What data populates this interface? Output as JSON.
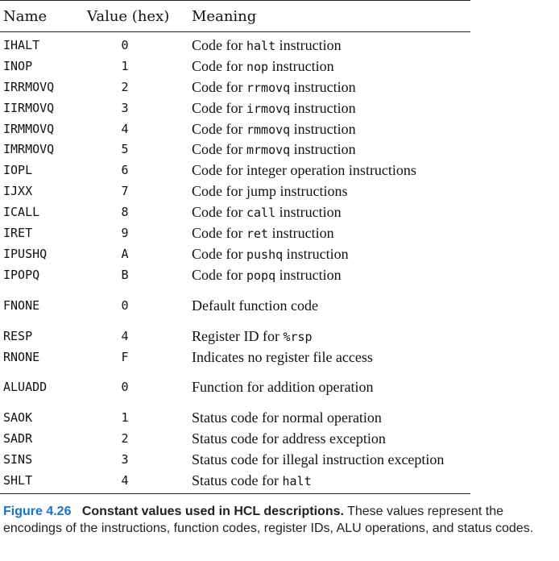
{
  "table": {
    "headers": {
      "name": "Name",
      "value": "Value (hex)",
      "meaning": "Meaning"
    },
    "rows": [
      {
        "name": "IHALT",
        "value": "0",
        "pre": "Code for ",
        "code": "halt",
        "post": " instruction"
      },
      {
        "name": "INOP",
        "value": "1",
        "pre": "Code for ",
        "code": "nop",
        "post": " instruction"
      },
      {
        "name": "IRRMOVQ",
        "value": "2",
        "pre": "Code for ",
        "code": "rrmovq",
        "post": " instruction"
      },
      {
        "name": "IIRMOVQ",
        "value": "3",
        "pre": "Code for ",
        "code": "irmovq",
        "post": " instruction"
      },
      {
        "name": "IRMMOVQ",
        "value": "4",
        "pre": "Code for ",
        "code": "rmmovq",
        "post": " instruction"
      },
      {
        "name": "IMRMOVQ",
        "value": "5",
        "pre": "Code for ",
        "code": "mrmovq",
        "post": " instruction"
      },
      {
        "name": "IOPL",
        "value": "6",
        "pre": "Code for integer operation instructions",
        "code": "",
        "post": ""
      },
      {
        "name": "IJXX",
        "value": "7",
        "pre": "Code for jump instructions",
        "code": "",
        "post": ""
      },
      {
        "name": "ICALL",
        "value": "8",
        "pre": "Code for ",
        "code": "call",
        "post": " instruction"
      },
      {
        "name": "IRET",
        "value": "9",
        "pre": "Code for ",
        "code": "ret",
        "post": " instruction"
      },
      {
        "name": "IPUSHQ",
        "value": "A",
        "pre": "Code for ",
        "code": "pushq",
        "post": " instruction"
      },
      {
        "name": "IPOPQ",
        "value": "B",
        "pre": "Code for ",
        "code": "popq",
        "post": " instruction"
      },
      {
        "name": "FNONE",
        "value": "0",
        "pre": "Default function code",
        "code": "",
        "post": ""
      },
      {
        "name": "RESP",
        "value": "4",
        "pre": "Register ID for ",
        "code": "%rsp",
        "post": ""
      },
      {
        "name": "RNONE",
        "value": "F",
        "pre": "Indicates no register file access",
        "code": "",
        "post": ""
      },
      {
        "name": "ALUADD",
        "value": "0",
        "pre": "Function for addition operation",
        "code": "",
        "post": ""
      },
      {
        "name": "SAOK",
        "value": "1",
        "pre": "Status code for normal operation",
        "code": "",
        "post": ""
      },
      {
        "name": "SADR",
        "value": "2",
        "pre": "Status code for address exception",
        "code": "",
        "post": ""
      },
      {
        "name": "SINS",
        "value": "3",
        "pre": "Status code for illegal instruction exception",
        "code": "",
        "post": ""
      },
      {
        "name": "SHLT",
        "value": "4",
        "pre": "Status code for ",
        "code": "halt",
        "post": ""
      }
    ]
  },
  "caption": {
    "label": "Figure 4.26",
    "title": "Constant values used in HCL descriptions.",
    "body": "These values represent the encodings of the instructions, function codes, register IDs, ALU operations, and status codes."
  }
}
